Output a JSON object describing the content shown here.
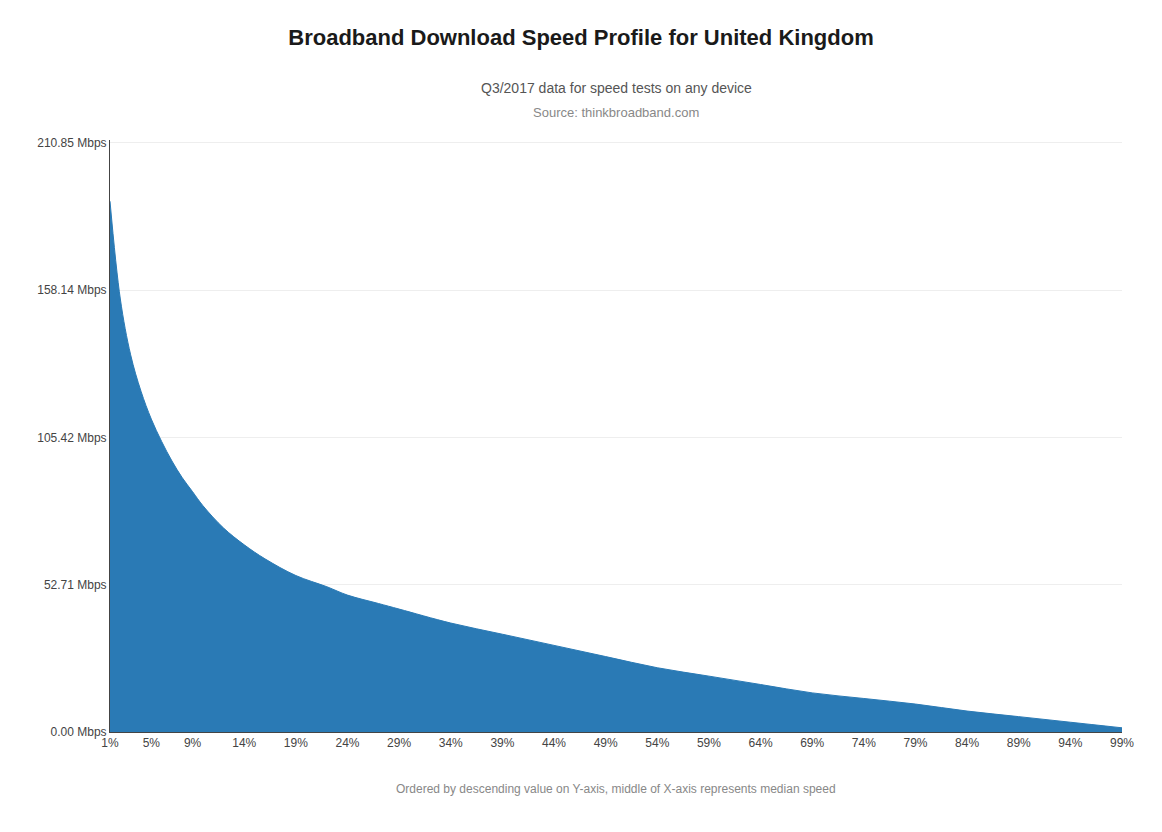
{
  "chart_data": {
    "type": "area",
    "title": "Broadband Download Speed Profile for United Kingdom",
    "subtitle": "Q3/2017 data for speed tests on any device",
    "source": "Source: thinkbroadband.com",
    "note": "Ordered by descending value on Y-axis, middle of X-axis represents median speed",
    "x": [
      1,
      2,
      3,
      4,
      5,
      6,
      7,
      8,
      9,
      10,
      12,
      14,
      16,
      19,
      22,
      24,
      27,
      29,
      34,
      39,
      44,
      49,
      54,
      59,
      64,
      69,
      74,
      79,
      84,
      89,
      94,
      99
    ],
    "values": [
      190,
      155,
      135,
      122,
      112,
      104,
      97,
      91,
      86,
      81,
      73,
      67,
      62,
      56,
      52,
      49,
      46,
      44,
      39,
      35,
      31,
      27,
      23,
      20,
      17,
      14,
      12,
      10,
      7.5,
      5.5,
      3.5,
      1.5
    ],
    "color": "#2a7ab5",
    "xlim": [
      1,
      99
    ],
    "xticks": [
      {
        "value": 1,
        "label": "1%"
      },
      {
        "value": 5,
        "label": "5%"
      },
      {
        "value": 9,
        "label": "9%"
      },
      {
        "value": 14,
        "label": "14%"
      },
      {
        "value": 19,
        "label": "19%"
      },
      {
        "value": 24,
        "label": "24%"
      },
      {
        "value": 29,
        "label": "29%"
      },
      {
        "value": 34,
        "label": "34%"
      },
      {
        "value": 39,
        "label": "39%"
      },
      {
        "value": 44,
        "label": "44%"
      },
      {
        "value": 49,
        "label": "49%"
      },
      {
        "value": 54,
        "label": "54%"
      },
      {
        "value": 59,
        "label": "59%"
      },
      {
        "value": 64,
        "label": "64%"
      },
      {
        "value": 69,
        "label": "69%"
      },
      {
        "value": 74,
        "label": "74%"
      },
      {
        "value": 79,
        "label": "79%"
      },
      {
        "value": 84,
        "label": "84%"
      },
      {
        "value": 89,
        "label": "89%"
      },
      {
        "value": 94,
        "label": "94%"
      },
      {
        "value": 99,
        "label": "99%"
      }
    ],
    "ylim": [
      0,
      211.90425
    ],
    "yticks": [
      {
        "value": 0.0,
        "label": "0.00 Mbps"
      },
      {
        "value": 52.71,
        "label": "52.71 Mbps"
      },
      {
        "value": 105.42,
        "label": "105.42 Mbps"
      },
      {
        "value": 158.14,
        "label": "158.14 Mbps"
      },
      {
        "value": 210.85,
        "label": "210.85 Mbps"
      }
    ],
    "grid": "y"
  }
}
